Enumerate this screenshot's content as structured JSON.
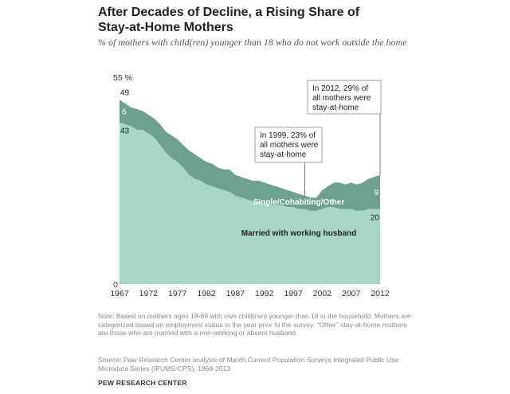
{
  "header": {
    "title": "After Decades of Decline, a Rising Share of Stay-at-Home Mothers",
    "subtitle": "% of mothers with child(ren) younger than 18 who do not work outside the home"
  },
  "footer": {
    "note": "Note: Based on mothers ages 18-69 with own child(ren) younger than 18 in the household. Mothers are categorized based on employment status in the year prior to the survey. “Other” stay-at-home mothers are those who are married with a non-working or absent husband.",
    "source": "Source: Pew Research Center analysis of March Current Population Surveys Integrated Public Use Microdata Series (IPUMS-CPS), 1968-2013",
    "brand": "PEW RESEARCH CENTER"
  },
  "colors": {
    "married": "#a8d5c6",
    "other": "#6fa08f",
    "tick": "#333333",
    "label_light": "#ffffff",
    "label_dark": "#222222"
  },
  "chart_data": {
    "type": "area",
    "stacked": true,
    "x": [
      1967,
      1968,
      1969,
      1970,
      1971,
      1972,
      1973,
      1974,
      1975,
      1976,
      1977,
      1978,
      1979,
      1980,
      1981,
      1982,
      1983,
      1984,
      1985,
      1986,
      1987,
      1988,
      1989,
      1990,
      1991,
      1992,
      1993,
      1994,
      1995,
      1996,
      1997,
      1998,
      1999,
      2000,
      2001,
      2002,
      2003,
      2004,
      2005,
      2006,
      2007,
      2008,
      2009,
      2010,
      2011,
      2012
    ],
    "series": [
      {
        "name": "Married with working husband",
        "values": [
          43,
          42.5,
          42,
          41,
          41,
          40,
          39,
          37,
          35,
          33.5,
          32.5,
          31,
          29,
          28,
          27.5,
          26.5,
          26,
          25.5,
          25,
          24.5,
          23.5,
          23,
          22.5,
          22,
          22,
          21.5,
          21,
          21,
          21,
          20.5,
          20.5,
          20,
          20,
          19.5,
          19.5,
          20,
          20.5,
          20.5,
          20,
          20,
          20,
          19.5,
          19.5,
          20,
          20,
          20
        ]
      },
      {
        "name": "Single/Cohabiting/Other",
        "values": [
          6,
          5.5,
          5,
          5.5,
          5,
          5,
          5,
          5.5,
          5.5,
          6,
          6,
          6,
          6.5,
          6.5,
          6,
          6,
          6,
          5.5,
          5.5,
          6,
          5.5,
          5.5,
          5.5,
          5.5,
          5.5,
          5.5,
          5.5,
          5,
          4.5,
          4.5,
          4,
          4,
          3.5,
          3.5,
          3.5,
          5,
          5.5,
          6.5,
          7,
          6.5,
          7,
          7,
          7.5,
          8,
          8.5,
          9
        ]
      }
    ],
    "ylim": [
      0,
      55
    ],
    "yticks": [
      {
        "value": 55,
        "label": "55 %"
      },
      {
        "value": 0,
        "label": "0"
      }
    ],
    "xticks": [
      1967,
      1972,
      1977,
      1982,
      1987,
      1992,
      1997,
      2002,
      2007,
      2012
    ],
    "value_labels": [
      {
        "id": "total-1967",
        "text": "49"
      },
      {
        "id": "other-1967",
        "text": "6"
      },
      {
        "id": "married-1967",
        "text": "43"
      },
      {
        "id": "other-2012",
        "text": "9"
      },
      {
        "id": "married-2012",
        "text": "20"
      }
    ],
    "series_labels": [
      {
        "series": "Single/Cohabiting/Other",
        "text": "Single/Cohabiting/Other"
      },
      {
        "series": "Married with working husband",
        "text": "Married with working husband"
      }
    ],
    "annotations": [
      {
        "year": 1999,
        "value": 23,
        "lines": [
          "In 1999, 23% of",
          "all mothers were",
          "stay-at-home"
        ]
      },
      {
        "year": 2012,
        "value": 29,
        "lines": [
          "In 2012, 29% of",
          "all mothers were",
          "stay-at-home"
        ]
      }
    ]
  }
}
